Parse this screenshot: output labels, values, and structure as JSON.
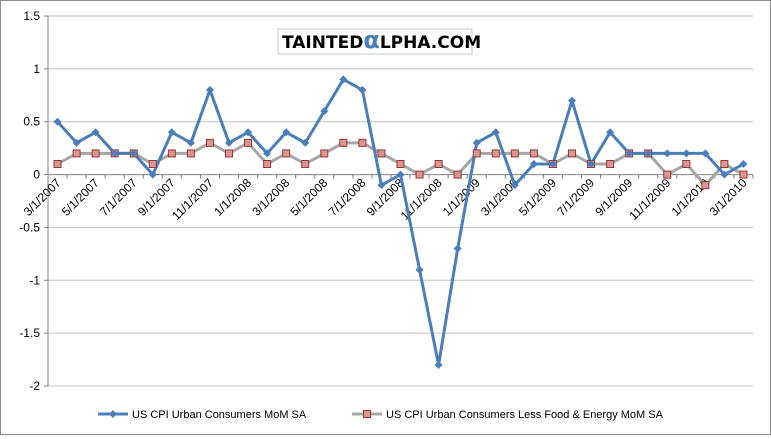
{
  "watermark": {
    "left": "TAINTED",
    "middle": "α",
    "right": "LPHA.COM"
  },
  "chart_data": {
    "type": "line",
    "title": "",
    "xlabel": "",
    "ylabel": "",
    "ylim": [
      -2,
      1.5
    ],
    "y_ticks": [
      1.5,
      1,
      0.5,
      0,
      -0.5,
      -1,
      -1.5,
      -2
    ],
    "y_tick_labels": [
      "1.5",
      "1",
      "0.5",
      "0",
      "-0.5",
      "-1",
      "-1.5",
      "-2"
    ],
    "grid": "horizontal",
    "legend_position": "bottom",
    "x": [
      "3/1/2007",
      "4/1/2007",
      "5/1/2007",
      "6/1/2007",
      "7/1/2007",
      "8/1/2007",
      "9/1/2007",
      "10/1/2007",
      "11/1/2007",
      "12/1/2007",
      "1/1/2008",
      "2/1/2008",
      "3/1/2008",
      "4/1/2008",
      "5/1/2008",
      "6/1/2008",
      "7/1/2008",
      "8/1/2008",
      "9/1/2008",
      "10/1/2008",
      "11/1/2008",
      "12/1/2008",
      "1/1/2009",
      "2/1/2009",
      "3/1/2009",
      "4/1/2009",
      "5/1/2009",
      "6/1/2009",
      "7/1/2009",
      "8/1/2009",
      "9/1/2009",
      "10/1/2009",
      "11/1/2009",
      "12/1/2009",
      "1/1/2010",
      "2/1/2010",
      "3/1/2010"
    ],
    "x_tick_labels": [
      "3/1/2007",
      "5/1/2007",
      "7/1/2007",
      "9/1/2007",
      "11/1/2007",
      "1/1/2008",
      "3/1/2008",
      "5/1/2008",
      "7/1/2008",
      "9/1/2008",
      "11/1/2008",
      "1/1/2009",
      "3/1/2009",
      "5/1/2009",
      "7/1/2009",
      "9/1/2009",
      "11/1/2009",
      "1/1/2010",
      "3/1/2010"
    ],
    "series": [
      {
        "name": "US CPI Urban Consumers MoM SA",
        "color": "#4a7ebb",
        "marker": "diamond",
        "values": [
          0.5,
          0.3,
          0.4,
          0.2,
          0.2,
          0.0,
          0.4,
          0.3,
          0.8,
          0.3,
          0.4,
          0.2,
          0.4,
          0.3,
          0.6,
          0.9,
          0.8,
          -0.1,
          0.0,
          -0.9,
          -1.8,
          -0.7,
          0.3,
          0.4,
          -0.1,
          0.1,
          0.1,
          0.7,
          0.1,
          0.4,
          0.2,
          0.2,
          0.2,
          0.2,
          0.2,
          0.0,
          0.1
        ]
      },
      {
        "name": "US CPI Urban Consumers Less Food & Energy MoM SA",
        "color": "#a6a6a6",
        "marker_fill": "#d99694",
        "marker_stroke": "#953735",
        "marker": "square",
        "values": [
          0.1,
          0.2,
          0.2,
          0.2,
          0.2,
          0.1,
          0.2,
          0.2,
          0.3,
          0.2,
          0.3,
          0.1,
          0.2,
          0.1,
          0.2,
          0.3,
          0.3,
          0.2,
          0.1,
          0.0,
          0.1,
          0.0,
          0.2,
          0.2,
          0.2,
          0.2,
          0.1,
          0.2,
          0.1,
          0.1,
          0.2,
          0.2,
          0.0,
          0.1,
          -0.1,
          0.1,
          0.0
        ]
      }
    ]
  }
}
